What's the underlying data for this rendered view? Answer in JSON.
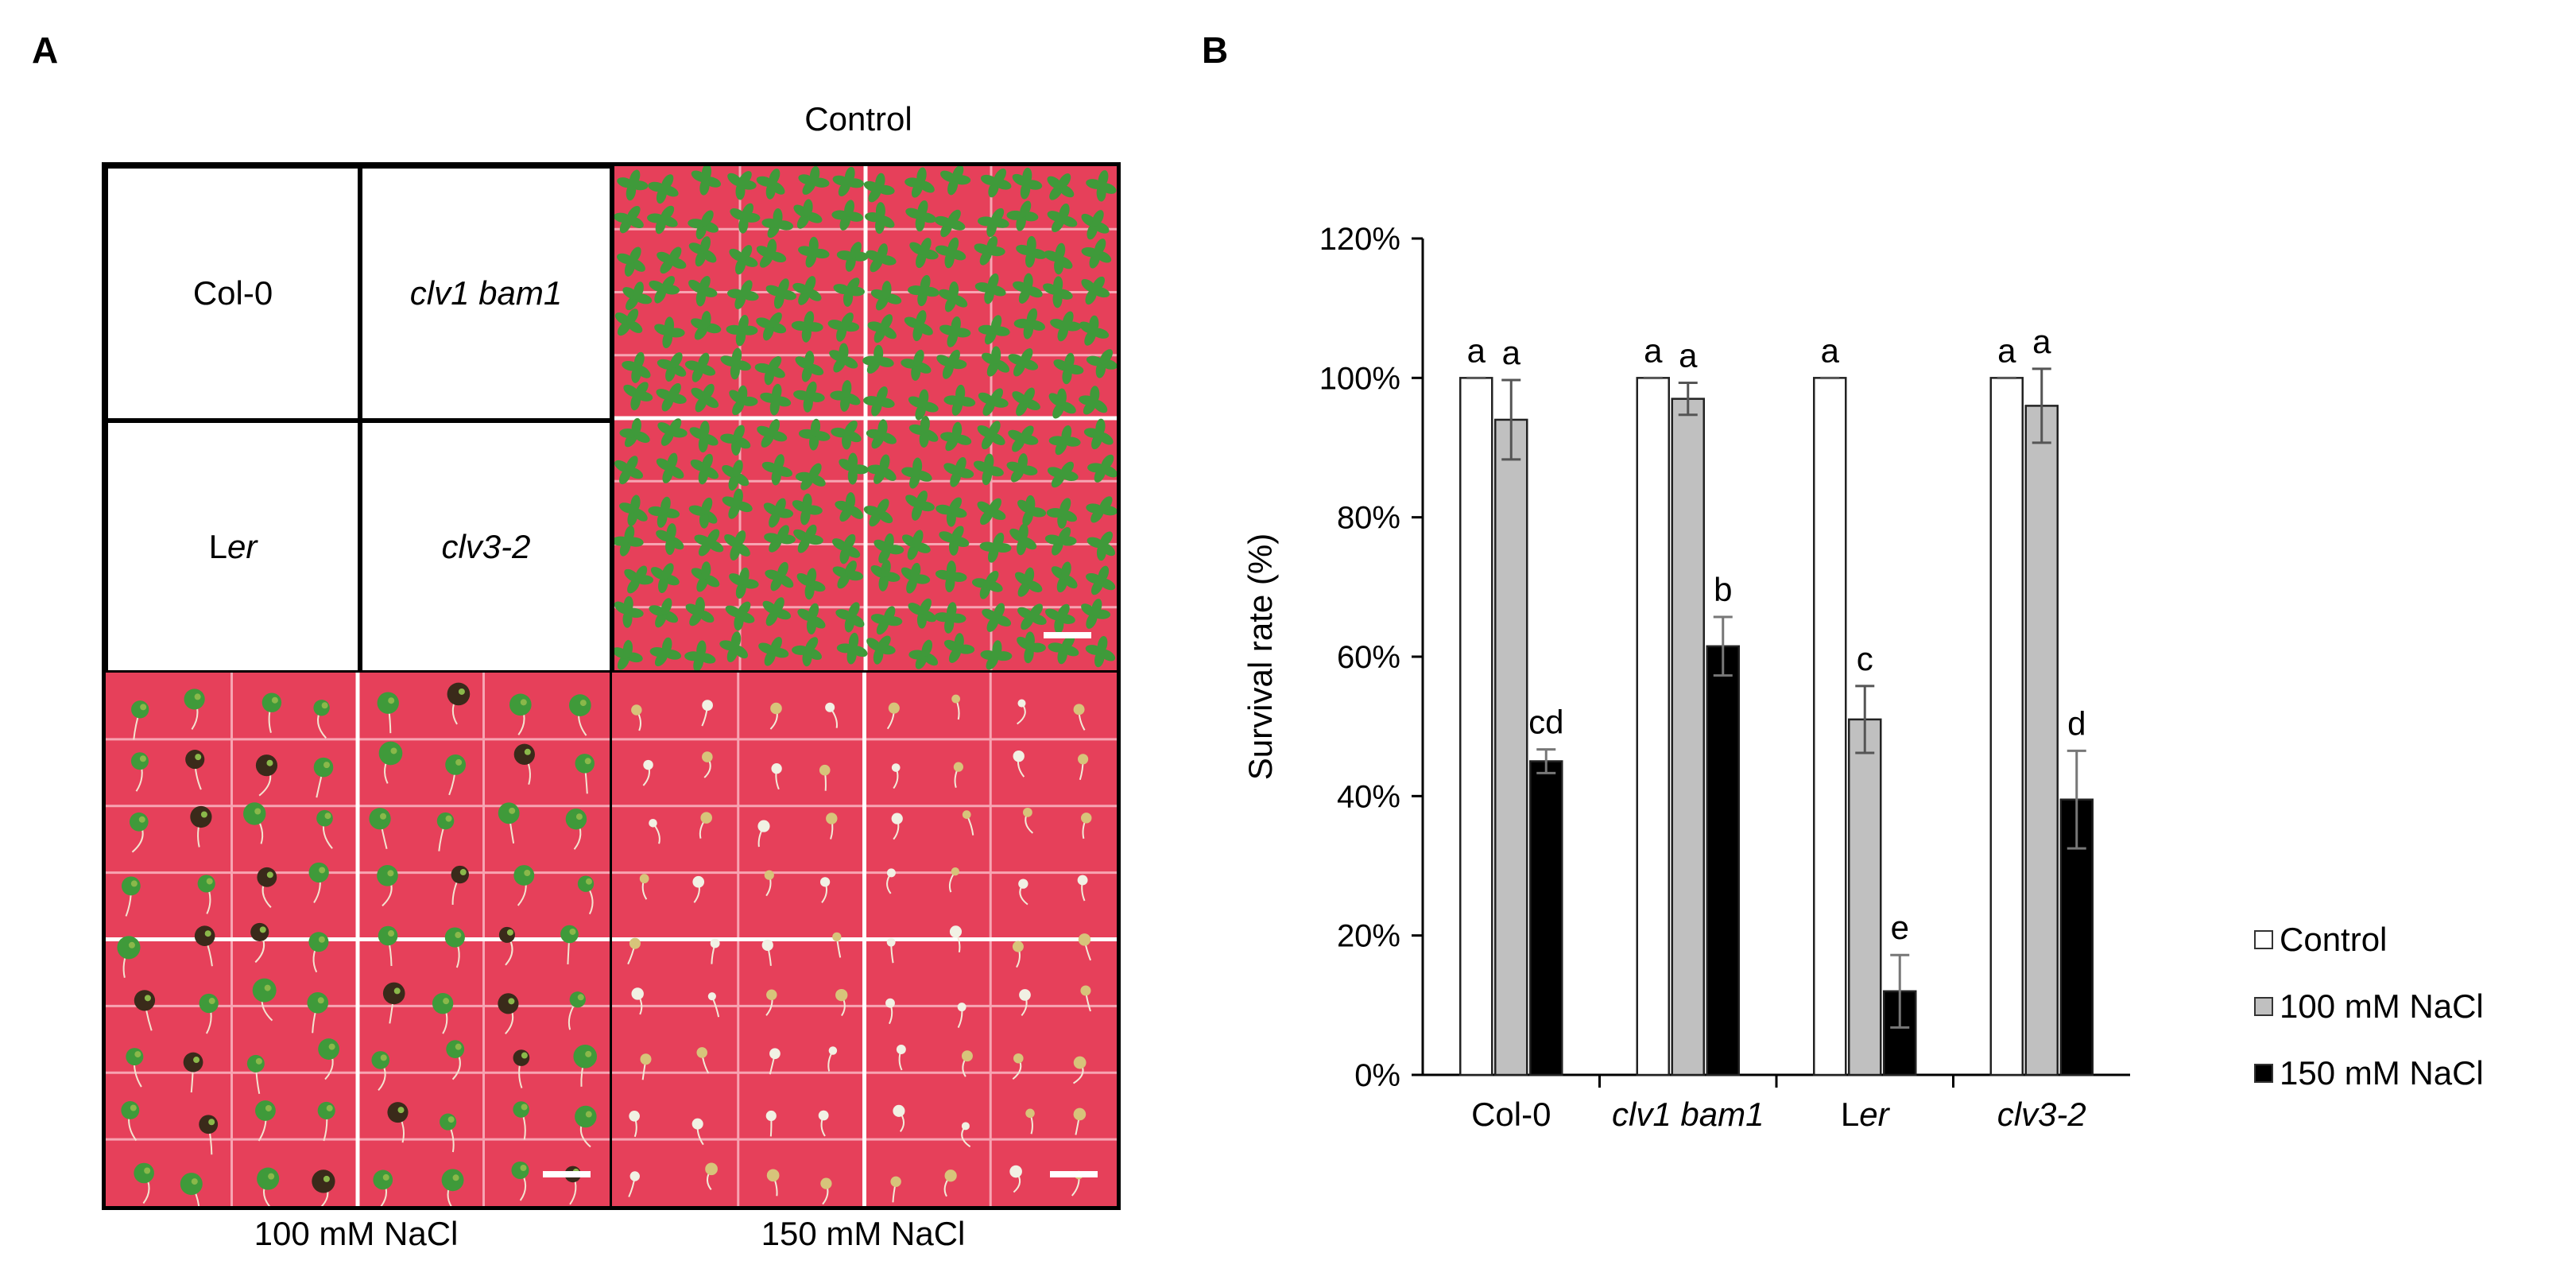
{
  "panel_a": {
    "label": "A",
    "top_caption": "Control",
    "bottom_captions": [
      "100 mM NaCl",
      "150 mM NaCl"
    ],
    "key": {
      "col0": "Col-0",
      "clv1bam1": "clv1 bam1",
      "ler_l": "L",
      "ler_er": "er",
      "clv32": "clv3-2"
    }
  },
  "panel_b": {
    "label": "B"
  },
  "colors": {
    "control": "#ffffff",
    "nacl100": "#c0c0c0",
    "nacl150": "#000000",
    "plate": "#e6405a",
    "seedling": "#3f9a3a"
  },
  "chart_data": {
    "type": "bar",
    "ylabel": "Survival rate (%)",
    "ylim": [
      0,
      120
    ],
    "yticks": [
      0,
      20,
      40,
      60,
      80,
      100,
      120
    ],
    "ytick_labels": [
      "0%",
      "20%",
      "40%",
      "60%",
      "80%",
      "100%",
      "120%"
    ],
    "categories": [
      {
        "name": "Col-0",
        "parts": [
          {
            "t": "Col-0",
            "i": false
          }
        ]
      },
      {
        "name": "clv1 bam1",
        "parts": [
          {
            "t": "clv1 bam1",
            "i": true
          }
        ]
      },
      {
        "name": "Ler",
        "parts": [
          {
            "t": "L",
            "i": false
          },
          {
            "t": "er",
            "i": true
          }
        ]
      },
      {
        "name": "clv3-2",
        "parts": [
          {
            "t": "clv3-2",
            "i": true
          }
        ]
      }
    ],
    "series": [
      {
        "name": "Control",
        "color": "#ffffff",
        "values": [
          100,
          100,
          100,
          100
        ],
        "errors": [
          0,
          0,
          0,
          0
        ],
        "letters": [
          "a",
          "a",
          "a",
          "a"
        ]
      },
      {
        "name": "100 mM NaCl",
        "color": "#c0c0c0",
        "values": [
          94,
          97,
          51,
          96
        ],
        "errors": [
          5.7,
          2.3,
          4.8,
          5.3
        ],
        "letters": [
          "a",
          "a",
          "c",
          "a"
        ]
      },
      {
        "name": "150 mM NaCl",
        "color": "#000000",
        "values": [
          45,
          61.5,
          12,
          39.5
        ],
        "errors": [
          1.7,
          4.2,
          5.2,
          7
        ],
        "letters": [
          "cd",
          "b",
          "e",
          "d"
        ]
      }
    ],
    "legend_position": "right"
  }
}
